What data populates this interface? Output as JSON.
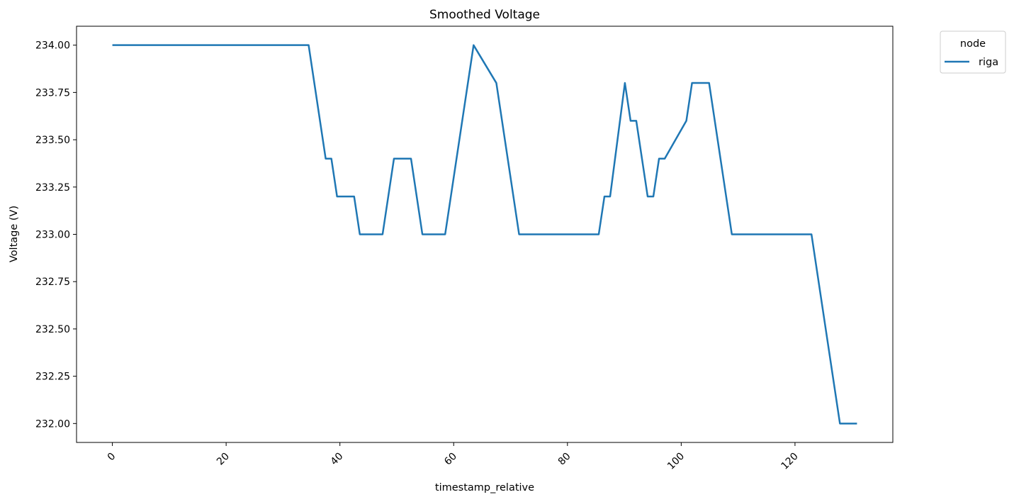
{
  "chart_data": {
    "type": "line",
    "title": "Smoothed Voltage",
    "xlabel": "timestamp_relative",
    "ylabel": "Voltage (V)",
    "xlim": [
      -6.3,
      137.2
    ],
    "ylim": [
      231.9,
      234.1
    ],
    "x_ticks": [
      0,
      20,
      40,
      60,
      80,
      100,
      120
    ],
    "y_ticks": [
      232.0,
      232.25,
      232.5,
      232.75,
      233.0,
      233.25,
      233.5,
      233.75,
      234.0
    ],
    "y_tick_labels": [
      "232.00",
      "232.25",
      "232.50",
      "232.75",
      "233.00",
      "233.25",
      "233.50",
      "233.75",
      "234.00"
    ],
    "x_tick_rotation": 45,
    "grid": false,
    "legend": {
      "title": "node",
      "placement": "upper-right-outside"
    },
    "series": [
      {
        "name": "riga",
        "color": "#1f77b4",
        "x": [
          0,
          34.5,
          37.5,
          38.5,
          39.5,
          42.5,
          43.5,
          47.5,
          49.5,
          52.5,
          54.5,
          58.5,
          63.5,
          67.5,
          71.5,
          85.5,
          86.5,
          87.5,
          90.1,
          91.1,
          92.1,
          94.1,
          95.1,
          96.1,
          97.1,
          100.9,
          101.9,
          104.9,
          108.9,
          122.9,
          127.9,
          130.9
        ],
        "y": [
          234.0,
          234.0,
          233.4,
          233.4,
          233.2,
          233.2,
          233.0,
          233.0,
          233.4,
          233.4,
          233.0,
          233.0,
          234.0,
          233.8,
          233.0,
          233.0,
          233.2,
          233.2,
          233.8,
          233.6,
          233.6,
          233.2,
          233.2,
          233.4,
          233.4,
          233.6,
          233.8,
          233.8,
          233.0,
          233.0,
          232.0,
          232.0
        ]
      }
    ]
  }
}
